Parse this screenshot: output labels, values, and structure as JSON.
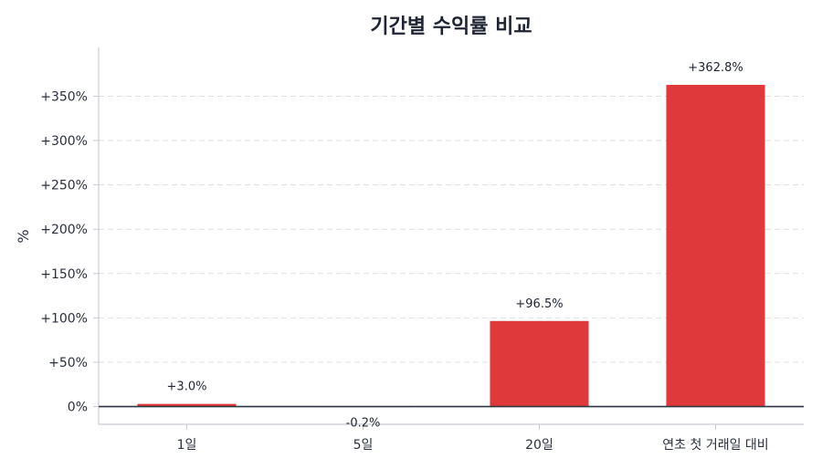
{
  "chart_data": {
    "type": "bar",
    "title": "기간별 수익률 비교",
    "ylabel": "%",
    "xlabel": "",
    "categories": [
      "1일",
      "5일",
      "20일",
      "연초 첫 거래일 대비"
    ],
    "values": [
      3.0,
      -0.2,
      96.5,
      362.8
    ],
    "data_labels": [
      "+3.0%",
      "-0.2%",
      "+96.5%",
      "+362.8%"
    ],
    "ylim": [
      -20,
      405
    ],
    "yticks": [
      0,
      50,
      100,
      150,
      200,
      250,
      300,
      350
    ],
    "ytick_labels": [
      "0%",
      "+50%",
      "+100%",
      "+150%",
      "+200%",
      "+250%",
      "+300%",
      "+350%"
    ],
    "grid": true,
    "colors": {
      "positive": "#e0393c",
      "negative": "#3b6fd1",
      "zero_line": "#2e3440",
      "grid": "#dcdfe5",
      "axis": "#c7cad1"
    }
  }
}
